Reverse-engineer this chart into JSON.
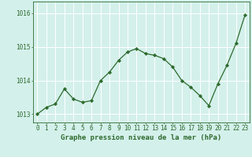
{
  "x": [
    0,
    1,
    2,
    3,
    4,
    5,
    6,
    7,
    8,
    9,
    10,
    11,
    12,
    13,
    14,
    15,
    16,
    17,
    18,
    19,
    20,
    21,
    22,
    23
  ],
  "y": [
    1013.0,
    1013.2,
    1013.3,
    1013.75,
    1013.45,
    1013.35,
    1013.4,
    1014.0,
    1014.25,
    1014.6,
    1014.85,
    1014.95,
    1014.8,
    1014.75,
    1014.65,
    1014.4,
    1014.0,
    1013.8,
    1013.55,
    1013.25,
    1013.9,
    1014.45,
    1015.1,
    1015.95
  ],
  "line_color": "#2d6a2d",
  "marker": "D",
  "marker_size": 2.2,
  "bg_color": "#d4f0eb",
  "grid_color": "#ffffff",
  "axis_color": "#2d6a2d",
  "tick_color": "#2d6a2d",
  "label_color": "#2d6a2d",
  "xlabel": "Graphe pression niveau de la mer (hPa)",
  "ylim": [
    1012.75,
    1016.35
  ],
  "yticks": [
    1013,
    1014,
    1015,
    1016
  ],
  "xticks": [
    0,
    1,
    2,
    3,
    4,
    5,
    6,
    7,
    8,
    9,
    10,
    11,
    12,
    13,
    14,
    15,
    16,
    17,
    18,
    19,
    20,
    21,
    22,
    23
  ],
  "xlabel_fontsize": 6.5,
  "tick_fontsize": 5.5,
  "linewidth": 0.9
}
